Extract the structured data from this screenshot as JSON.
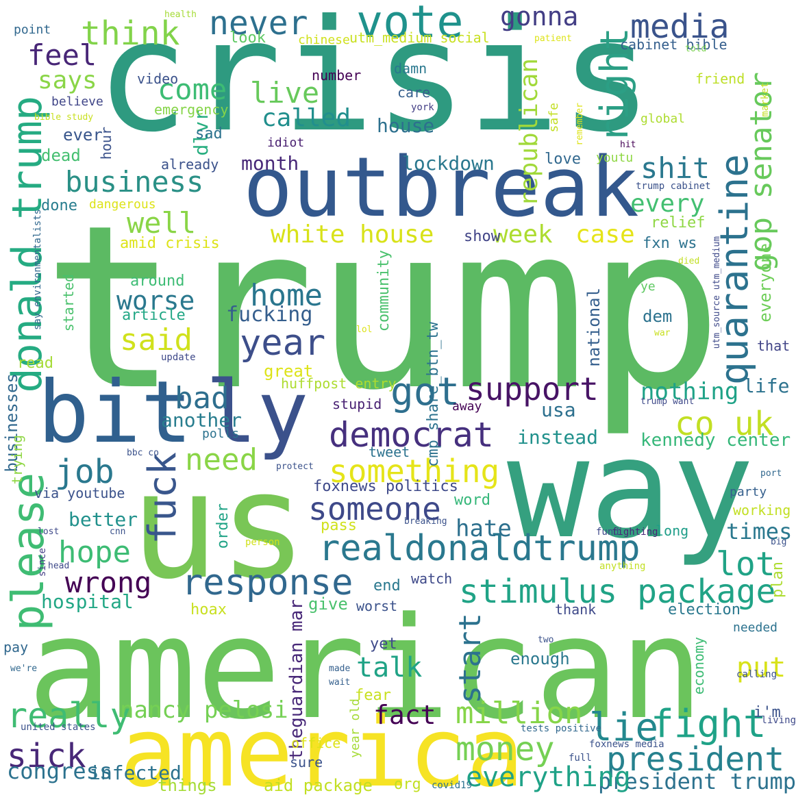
{
  "cloud": {
    "words": [
      {
        "text": "trump",
        "color": "#5cba63"
      },
      {
        "text": "crisis",
        "color": "#2e9a80"
      },
      {
        "text": "american",
        "color": "#6bc45c"
      },
      {
        "text": "us",
        "color": "#79c656"
      },
      {
        "text": "way",
        "color": "#35a07f"
      },
      {
        "text": "outbreak",
        "color": "#33588d"
      },
      {
        "text": "bit",
        "color": "#30608e"
      },
      {
        "text": "ly",
        "color": "#3b518b"
      },
      {
        "text": "america",
        "color": "#f6e324"
      },
      {
        "text": "vote",
        "color": "#1f928c"
      },
      {
        "text": "never",
        "color": "#2d708e"
      },
      {
        "text": "media",
        "color": "#3a538b"
      },
      {
        "text": "think",
        "color": "#82d34a"
      },
      {
        "text": "feel",
        "color": "#482677"
      },
      {
        "text": "gonna",
        "color": "#433e85"
      },
      {
        "text": "business",
        "color": "#2a9086"
      },
      {
        "text": "well",
        "color": "#8ad547"
      },
      {
        "text": "come",
        "color": "#3dbc74"
      },
      {
        "text": "live",
        "color": "#67c95b"
      },
      {
        "text": "called",
        "color": "#218f8d"
      },
      {
        "text": "right",
        "color": "#2c9f85"
      },
      {
        "text": "republican",
        "color": "#a1d93a"
      },
      {
        "text": "gop senator",
        "color": "#67c95b"
      },
      {
        "text": "quarantine",
        "color": "#2c728e"
      },
      {
        "text": "shit",
        "color": "#2a788e"
      },
      {
        "text": "every",
        "color": "#43bf71"
      },
      {
        "text": "donald trump",
        "color": "#25ab82"
      },
      {
        "text": "says",
        "color": "#8ad547"
      },
      {
        "text": "white house",
        "color": "#d8e219"
      },
      {
        "text": "case",
        "color": "#e5e419"
      },
      {
        "text": "week",
        "color": "#addc30"
      },
      {
        "text": "home",
        "color": "#2a768e"
      },
      {
        "text": "said",
        "color": "#d0e11c"
      },
      {
        "text": "worse",
        "color": "#2a788e"
      },
      {
        "text": "year",
        "color": "#3d4e8a"
      },
      {
        "text": "fucking",
        "color": "#355e8d"
      },
      {
        "text": "got",
        "color": "#2e6f8e"
      },
      {
        "text": "support",
        "color": "#471365"
      },
      {
        "text": "democrat",
        "color": "#46307e"
      },
      {
        "text": "co uk",
        "color": "#c2df23"
      },
      {
        "text": "nothing",
        "color": "#1fa287"
      },
      {
        "text": "bad",
        "color": "#2e6e8e"
      },
      {
        "text": "job",
        "color": "#2a788e"
      },
      {
        "text": "need",
        "color": "#8ad547"
      },
      {
        "text": "something",
        "color": "#e5e419"
      },
      {
        "text": "fuck",
        "color": "#39568c"
      },
      {
        "text": "please",
        "color": "#3fbc73"
      },
      {
        "text": "someone",
        "color": "#3e4989"
      },
      {
        "text": "realdonaldtrump",
        "color": "#2a788e"
      },
      {
        "text": "hope",
        "color": "#3dbc74"
      },
      {
        "text": "wrong",
        "color": "#440154"
      },
      {
        "text": "response",
        "color": "#31688e"
      },
      {
        "text": "stimulus package",
        "color": "#20a386"
      },
      {
        "text": "lot",
        "color": "#20a386"
      },
      {
        "text": "hate",
        "color": "#2d708e"
      },
      {
        "text": "times",
        "color": "#2a788e"
      },
      {
        "text": "talk",
        "color": "#20a386"
      },
      {
        "text": "start",
        "color": "#2c728e"
      },
      {
        "text": "put",
        "color": "#d8e219"
      },
      {
        "text": "money",
        "color": "#75d054"
      },
      {
        "text": "million",
        "color": "#86d549"
      },
      {
        "text": "fact",
        "color": "#440154"
      },
      {
        "text": "lie",
        "color": "#23888e"
      },
      {
        "text": "fight",
        "color": "#1fa287"
      },
      {
        "text": "president",
        "color": "#26818e"
      },
      {
        "text": "president trump",
        "color": "#2c728e"
      },
      {
        "text": "everything",
        "color": "#1fa287"
      },
      {
        "text": "really",
        "color": "#3fbc73"
      },
      {
        "text": "nancy pelosi",
        "color": "#75d054"
      },
      {
        "text": "sick",
        "color": "#482878"
      },
      {
        "text": "congress",
        "color": "#2c728e"
      },
      {
        "text": "point",
        "color": "#31688e"
      },
      {
        "text": "health",
        "color": "#a5db36"
      },
      {
        "text": "look",
        "color": "#5ec962"
      },
      {
        "text": "chinese",
        "color": "#d0e11c"
      },
      {
        "text": "utm_medium social",
        "color": "#c8e020"
      },
      {
        "text": "cabinet bible",
        "color": "#355f8d"
      },
      {
        "text": "patient",
        "color": "#dde318"
      },
      {
        "text": "told",
        "color": "#7ad151"
      },
      {
        "text": "friend",
        "color": "#bddf26"
      },
      {
        "text": "video",
        "color": "#3b528b"
      },
      {
        "text": "dlvr",
        "color": "#28ae80"
      },
      {
        "text": "believe",
        "color": "#404688"
      },
      {
        "text": "emergency",
        "color": "#86d549"
      },
      {
        "text": "bible study",
        "color": "#c8e020"
      },
      {
        "text": "number",
        "color": "#440154"
      },
      {
        "text": "damn",
        "color": "#2a788e"
      },
      {
        "text": "care",
        "color": "#355f8d"
      },
      {
        "text": "york",
        "color": "#433e85"
      },
      {
        "text": "house",
        "color": "#2d708e"
      },
      {
        "text": "safe",
        "color": "#c2df23"
      },
      {
        "text": "remember",
        "color": "#dde318"
      },
      {
        "text": "market",
        "color": "#c2df23"
      },
      {
        "text": "global",
        "color": "#addc30"
      },
      {
        "text": "ever",
        "color": "#39568c"
      },
      {
        "text": "sad",
        "color": "#2c728e"
      },
      {
        "text": "idiot",
        "color": "#481f70"
      },
      {
        "text": "dead",
        "color": "#44bf70"
      },
      {
        "text": "hour",
        "color": "#3b528b"
      },
      {
        "text": "hit",
        "color": "#440154"
      },
      {
        "text": "already",
        "color": "#3b528b"
      },
      {
        "text": "month",
        "color": "#482878"
      },
      {
        "text": "lockdown",
        "color": "#2a788e"
      },
      {
        "text": "love",
        "color": "#31688e"
      },
      {
        "text": "youtu",
        "color": "#8fd744"
      },
      {
        "text": "trump cabinet",
        "color": "#3b528b"
      },
      {
        "text": "done",
        "color": "#287d8e"
      },
      {
        "text": "dangerous",
        "color": "#dde318"
      },
      {
        "text": "relief",
        "color": "#8fd744"
      },
      {
        "text": "say environmentalists",
        "color": "#31688e"
      },
      {
        "text": "amid crisis",
        "color": "#dde318"
      },
      {
        "text": "show",
        "color": "#414487"
      },
      {
        "text": "fxn ws",
        "color": "#2c728e"
      },
      {
        "text": "died",
        "color": "#c2df23"
      },
      {
        "text": "around",
        "color": "#3dbc74"
      },
      {
        "text": "article",
        "color": "#22a785"
      },
      {
        "text": "community",
        "color": "#4ac16d"
      },
      {
        "text": "ye",
        "color": "#5ec962"
      },
      {
        "text": "dem",
        "color": "#2c728e"
      },
      {
        "text": "everyone",
        "color": "#6ece58"
      },
      {
        "text": "national",
        "color": "#355f8d"
      },
      {
        "text": "utm_source utm_medium",
        "color": "#3e4989"
      },
      {
        "text": "started",
        "color": "#4ac16d"
      },
      {
        "text": "update",
        "color": "#3e4989"
      },
      {
        "text": "lol",
        "color": "#dde318"
      },
      {
        "text": "cmp share_btn_tw",
        "color": "#2c728e"
      },
      {
        "text": "war",
        "color": "#c8e020"
      },
      {
        "text": "that",
        "color": "#414487"
      },
      {
        "text": "read",
        "color": "#a5db36"
      },
      {
        "text": "great",
        "color": "#dde318"
      },
      {
        "text": "huffpost entry",
        "color": "#addc30"
      },
      {
        "text": "life",
        "color": "#2c728e"
      },
      {
        "text": "businesses",
        "color": "#31688e"
      },
      {
        "text": "stupid",
        "color": "#482173"
      },
      {
        "text": "away",
        "color": "#440154"
      },
      {
        "text": "trump want",
        "color": "#3e4989"
      },
      {
        "text": "another",
        "color": "#287d8e"
      },
      {
        "text": "usa",
        "color": "#2d708e"
      },
      {
        "text": "instead",
        "color": "#21918c"
      },
      {
        "text": "kennedy center",
        "color": "#35b779"
      },
      {
        "text": "trying",
        "color": "#8fd744"
      },
      {
        "text": "polls",
        "color": "#2c728e"
      },
      {
        "text": "bbc co",
        "color": "#3b528b"
      },
      {
        "text": "tweet",
        "color": "#2c728e"
      },
      {
        "text": "protect",
        "color": "#3b528b"
      },
      {
        "text": "via youtube",
        "color": "#3b528b"
      },
      {
        "text": "foxnews politics",
        "color": "#3e4989"
      },
      {
        "text": "port",
        "color": "#31688e"
      },
      {
        "text": "party",
        "color": "#35608d"
      },
      {
        "text": "working",
        "color": "#c2df23"
      },
      {
        "text": "better",
        "color": "#21918c"
      },
      {
        "text": "order",
        "color": "#20a386"
      },
      {
        "text": "word",
        "color": "#35b779"
      },
      {
        "text": "cnn",
        "color": "#3b528b"
      },
      {
        "text": "pass",
        "color": "#d0e11c"
      },
      {
        "text": "breaking",
        "color": "#3b528b"
      },
      {
        "text": "fund",
        "color": "#3e4989"
      },
      {
        "text": "fighting",
        "color": "#482878"
      },
      {
        "text": "long",
        "color": "#1f9e89"
      },
      {
        "text": "big",
        "color": "#3b528b"
      },
      {
        "text": "lost",
        "color": "#3e4989"
      },
      {
        "text": "since",
        "color": "#433e85"
      },
      {
        "text": "head",
        "color": "#3e4989"
      },
      {
        "text": "person",
        "color": "#d0e11c"
      },
      {
        "text": "anything",
        "color": "#c2df23"
      },
      {
        "text": "plan",
        "color": "#addc30"
      },
      {
        "text": "end",
        "color": "#2a788e"
      },
      {
        "text": "watch",
        "color": "#3e4989"
      },
      {
        "text": "hospital",
        "color": "#22a785"
      },
      {
        "text": "give",
        "color": "#4ac16d"
      },
      {
        "text": "worst",
        "color": "#3b528b"
      },
      {
        "text": "hoax",
        "color": "#c8e020"
      },
      {
        "text": "thank",
        "color": "#3e4989"
      },
      {
        "text": "election",
        "color": "#2a788e"
      },
      {
        "text": "needed",
        "color": "#2c728e"
      },
      {
        "text": "pay",
        "color": "#31688e"
      },
      {
        "text": "theguardian mar",
        "color": "#482878"
      },
      {
        "text": "yet",
        "color": "#3e4989"
      },
      {
        "text": "two",
        "color": "#3b528b"
      },
      {
        "text": "enough",
        "color": "#2a788e"
      },
      {
        "text": "economy",
        "color": "#3dbc74"
      },
      {
        "text": "calling",
        "color": "#3b528b"
      },
      {
        "text": "we're",
        "color": "#31688e"
      },
      {
        "text": "made",
        "color": "#35608d"
      },
      {
        "text": "wait",
        "color": "#35608d"
      },
      {
        "text": "i'm",
        "color": "#3b528b"
      },
      {
        "text": "fear",
        "color": "#c8e020"
      },
      {
        "text": "year old",
        "color": "#a5db36"
      },
      {
        "text": "united states",
        "color": "#3b528b"
      },
      {
        "text": "tests positive",
        "color": "#31688e"
      },
      {
        "text": "living",
        "color": "#3e4989"
      },
      {
        "text": "office",
        "color": "#dde318"
      },
      {
        "text": "foxnews media",
        "color": "#3b528b"
      },
      {
        "text": "sure",
        "color": "#3b528b"
      },
      {
        "text": "full",
        "color": "#3b528b"
      },
      {
        "text": "infected",
        "color": "#2c728e"
      },
      {
        "text": "things",
        "color": "#a5db36"
      },
      {
        "text": "aid package",
        "color": "#c2df23"
      },
      {
        "text": "org",
        "color": "#c2df23"
      },
      {
        "text": "covid19",
        "color": "#2c728e"
      }
    ]
  }
}
